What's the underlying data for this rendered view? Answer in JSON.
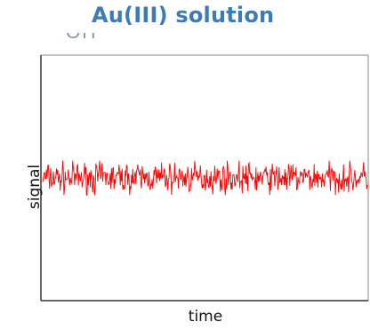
{
  "title": "Au(III) solution",
  "partial_text": "OH",
  "colors": {
    "title": "#3d7ab8",
    "signal": "#ff0000",
    "axis": "#333333",
    "frame": "#888888"
  },
  "chart_data": {
    "type": "line",
    "title": "Au(III) solution",
    "xlabel": "time",
    "ylabel": "signal",
    "grid": false,
    "legend": "none",
    "series": [
      {
        "baseline": 0.5,
        "noise_band": [
          0.43,
          0.57
        ],
        "shape": "constant noisy signal"
      }
    ],
    "ylim": [
      0,
      1
    ],
    "xlim": [
      0,
      1
    ]
  }
}
